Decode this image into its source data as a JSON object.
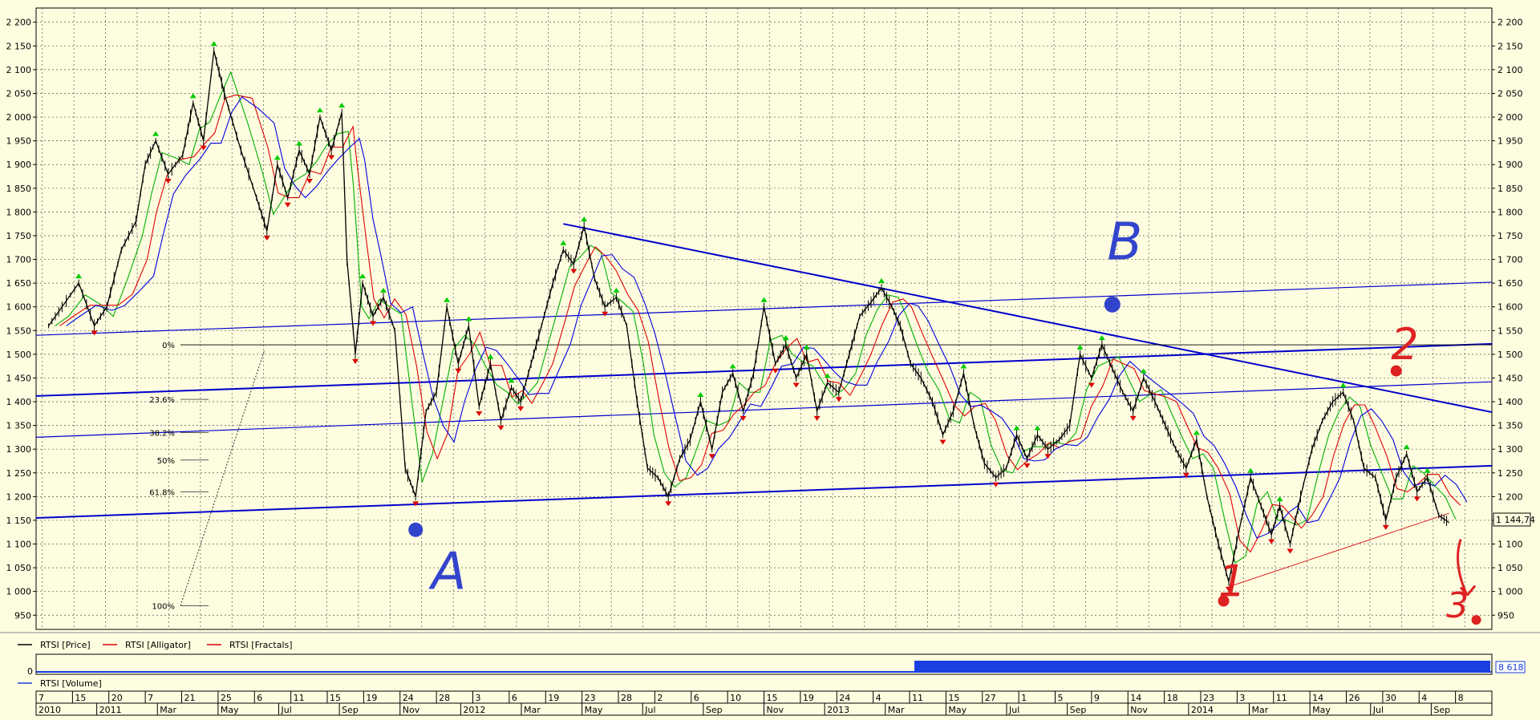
{
  "chart_data": {
    "type": "line",
    "instrument": "RTSI",
    "y_ticks": [
      "2 200",
      "2 150",
      "2 100",
      "2 050",
      "2 000",
      "1 950",
      "1 900",
      "1 850",
      "1 800",
      "1 750",
      "1 700",
      "1 650",
      "1 600",
      "1 550",
      "1 500",
      "1 450",
      "1 400",
      "1 350",
      "1 300",
      "1 250",
      "1 200",
      "1 150",
      "1 100",
      "1 050",
      "1 000",
      "950"
    ],
    "ylim": [
      920,
      2230
    ],
    "grid": true,
    "last_price": "1 144,74",
    "volume_value": "8 618",
    "volume_ticks": [
      "0"
    ],
    "legend_position": "bottom-left",
    "legend": [
      "RTSI [Price]",
      "RTSI [Alligator]",
      "RTSI [Fractals]"
    ],
    "volume_legend": "RTSI [Volume]",
    "colors": {
      "price": "#000000",
      "lips": "#00b000",
      "teeth": "#e00000",
      "jaw": "#0000e0",
      "trend": "#0000cc",
      "annotation_blue": "#3344cc",
      "annotation_red": "#dd2222",
      "fractal_up": "#00cc00",
      "fractal_down": "#dd0000"
    },
    "fib_levels": [
      "0%",
      "23.6%",
      "38.2%",
      "50%",
      "61.8%",
      "100%"
    ],
    "date_axis_days": [
      "7",
      "15",
      "20",
      "7",
      "21",
      "25",
      "6",
      "11",
      "15",
      "19",
      "24",
      "28",
      "3",
      "6",
      "19",
      "23",
      "28",
      "2",
      "6",
      "10",
      "15",
      "19",
      "24",
      "4",
      "11",
      "15",
      "27",
      "1",
      "5",
      "9",
      "14",
      "18",
      "23",
      "3",
      "11",
      "14",
      "26",
      "30",
      "4",
      "8"
    ],
    "date_axis_labels": [
      "2010",
      "2011",
      "Mar",
      "May",
      "Jul",
      "Sep",
      "Nov",
      "2012",
      "Mar",
      "May",
      "Jul",
      "Sep",
      "Nov",
      "2013",
      "Mar",
      "May",
      "Jul",
      "Sep",
      "Nov",
      "2014",
      "Mar",
      "May",
      "Jul",
      "Sep"
    ],
    "annotations": [
      {
        "text": "A",
        "color": "blue"
      },
      {
        "text": "B",
        "color": "blue"
      },
      {
        "text": "1",
        "color": "red"
      },
      {
        "text": "2",
        "color": "red"
      },
      {
        "text": "3",
        "color": "red"
      }
    ],
    "price_path": [
      [
        "2010-12-07",
        1560
      ],
      [
        "2010-12-20",
        1600
      ],
      [
        "2011-01-05",
        1650
      ],
      [
        "2011-01-20",
        1560
      ],
      [
        "2011-02-01",
        1600
      ],
      [
        "2011-02-15",
        1720
      ],
      [
        "2011-03-01",
        1780
      ],
      [
        "2011-03-10",
        1900
      ],
      [
        "2011-03-20",
        1950
      ],
      [
        "2011-04-01",
        1880
      ],
      [
        "2011-04-15",
        1920
      ],
      [
        "2011-04-25",
        2030
      ],
      [
        "2011-05-05",
        1950
      ],
      [
        "2011-05-15",
        2140
      ],
      [
        "2011-05-25",
        2050
      ],
      [
        "2011-06-10",
        1930
      ],
      [
        "2011-06-25",
        1830
      ],
      [
        "2011-07-05",
        1760
      ],
      [
        "2011-07-15",
        1900
      ],
      [
        "2011-07-25",
        1830
      ],
      [
        "2011-08-05",
        1930
      ],
      [
        "2011-08-15",
        1880
      ],
      [
        "2011-08-25",
        2000
      ],
      [
        "2011-09-05",
        1930
      ],
      [
        "2011-09-15",
        2010
      ],
      [
        "2011-09-20",
        1700
      ],
      [
        "2011-09-28",
        1500
      ],
      [
        "2011-10-05",
        1650
      ],
      [
        "2011-10-15",
        1580
      ],
      [
        "2011-10-25",
        1620
      ],
      [
        "2011-11-05",
        1550
      ],
      [
        "2011-11-15",
        1260
      ],
      [
        "2011-11-25",
        1200
      ],
      [
        "2011-12-05",
        1380
      ],
      [
        "2011-12-15",
        1420
      ],
      [
        "2011-12-25",
        1600
      ],
      [
        "2012-01-05",
        1480
      ],
      [
        "2012-01-15",
        1560
      ],
      [
        "2012-01-25",
        1390
      ],
      [
        "2012-02-05",
        1480
      ],
      [
        "2012-02-15",
        1360
      ],
      [
        "2012-02-25",
        1430
      ],
      [
        "2012-03-05",
        1400
      ],
      [
        "2012-03-15",
        1480
      ],
      [
        "2012-03-25",
        1560
      ],
      [
        "2012-04-05",
        1650
      ],
      [
        "2012-04-15",
        1720
      ],
      [
        "2012-04-25",
        1690
      ],
      [
        "2012-05-05",
        1770
      ],
      [
        "2012-05-15",
        1660
      ],
      [
        "2012-05-25",
        1600
      ],
      [
        "2012-06-05",
        1620
      ],
      [
        "2012-06-15",
        1560
      ],
      [
        "2012-06-25",
        1400
      ],
      [
        "2012-07-05",
        1260
      ],
      [
        "2012-07-15",
        1240
      ],
      [
        "2012-07-25",
        1200
      ],
      [
        "2012-08-05",
        1280
      ],
      [
        "2012-08-15",
        1320
      ],
      [
        "2012-08-25",
        1400
      ],
      [
        "2012-09-05",
        1300
      ],
      [
        "2012-09-15",
        1420
      ],
      [
        "2012-09-25",
        1460
      ],
      [
        "2012-10-05",
        1380
      ],
      [
        "2012-10-15",
        1460
      ],
      [
        "2012-10-25",
        1600
      ],
      [
        "2012-11-05",
        1480
      ],
      [
        "2012-11-15",
        1520
      ],
      [
        "2012-11-25",
        1450
      ],
      [
        "2012-12-05",
        1500
      ],
      [
        "2012-12-15",
        1380
      ],
      [
        "2012-12-25",
        1440
      ],
      [
        "2013-01-05",
        1420
      ],
      [
        "2013-01-15",
        1500
      ],
      [
        "2013-01-25",
        1580
      ],
      [
        "2013-02-05",
        1610
      ],
      [
        "2013-02-15",
        1640
      ],
      [
        "2013-02-25",
        1600
      ],
      [
        "2013-03-05",
        1560
      ],
      [
        "2013-03-15",
        1480
      ],
      [
        "2013-03-25",
        1450
      ],
      [
        "2013-04-05",
        1400
      ],
      [
        "2013-04-15",
        1330
      ],
      [
        "2013-04-25",
        1380
      ],
      [
        "2013-05-05",
        1460
      ],
      [
        "2013-05-15",
        1350
      ],
      [
        "2013-05-25",
        1270
      ],
      [
        "2013-06-05",
        1240
      ],
      [
        "2013-06-15",
        1260
      ],
      [
        "2013-06-25",
        1330
      ],
      [
        "2013-07-05",
        1280
      ],
      [
        "2013-07-15",
        1330
      ],
      [
        "2013-07-25",
        1300
      ],
      [
        "2013-08-05",
        1320
      ],
      [
        "2013-08-15",
        1350
      ],
      [
        "2013-08-25",
        1500
      ],
      [
        "2013-09-05",
        1450
      ],
      [
        "2013-09-15",
        1520
      ],
      [
        "2013-09-25",
        1470
      ],
      [
        "2013-10-05",
        1420
      ],
      [
        "2013-10-15",
        1380
      ],
      [
        "2013-10-25",
        1450
      ],
      [
        "2013-11-05",
        1400
      ],
      [
        "2013-11-15",
        1350
      ],
      [
        "2013-11-25",
        1300
      ],
      [
        "2013-12-05",
        1260
      ],
      [
        "2013-12-15",
        1320
      ],
      [
        "2013-12-25",
        1200
      ],
      [
        "2014-01-05",
        1100
      ],
      [
        "2014-01-15",
        1020
      ],
      [
        "2014-01-25",
        1130
      ],
      [
        "2014-02-05",
        1240
      ],
      [
        "2014-02-15",
        1180
      ],
      [
        "2014-02-25",
        1120
      ],
      [
        "2014-03-05",
        1180
      ],
      [
        "2014-03-15",
        1100
      ],
      [
        "2014-03-25",
        1200
      ],
      [
        "2014-04-05",
        1300
      ],
      [
        "2014-04-15",
        1360
      ],
      [
        "2014-04-25",
        1400
      ],
      [
        "2014-05-05",
        1420
      ],
      [
        "2014-05-15",
        1360
      ],
      [
        "2014-05-25",
        1260
      ],
      [
        "2014-06-05",
        1240
      ],
      [
        "2014-06-15",
        1150
      ],
      [
        "2014-06-25",
        1240
      ],
      [
        "2014-07-05",
        1290
      ],
      [
        "2014-07-15",
        1210
      ],
      [
        "2014-07-25",
        1240
      ],
      [
        "2014-08-05",
        1160
      ],
      [
        "2014-08-15",
        1145
      ]
    ]
  }
}
